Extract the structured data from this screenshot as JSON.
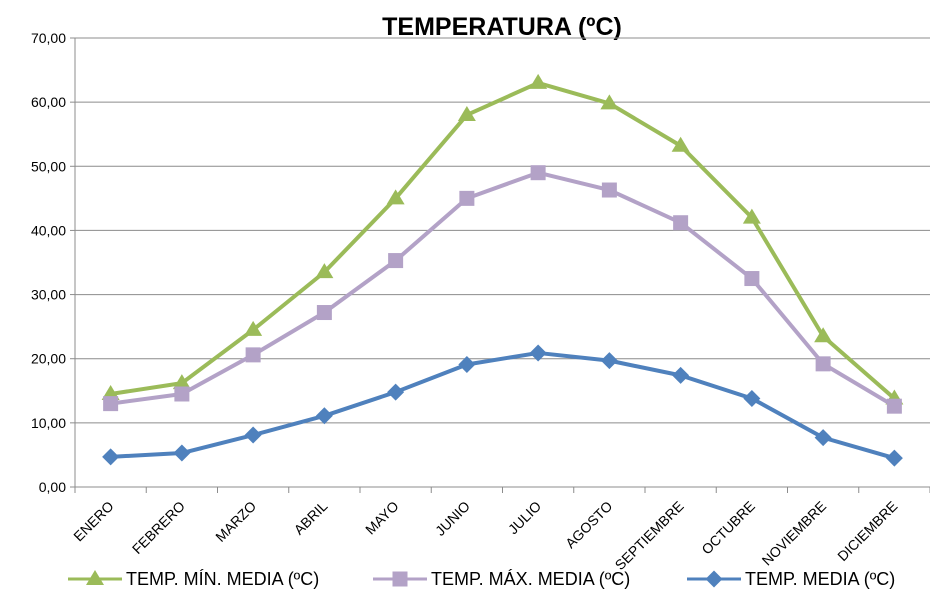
{
  "chart_data": {
    "type": "line",
    "title": "TEMPERATURA (ºC)",
    "xlabel": "",
    "ylabel": "",
    "categories": [
      "ENERO",
      "FEBRERO",
      "MARZO",
      "ABRIL",
      "MAYO",
      "JUNIO",
      "JULIO",
      "AGOSTO",
      "SEPTIEMBRE",
      "OCTUBRE",
      "NOVIEMBRE",
      "DICIEMBRE"
    ],
    "ylim": [
      0,
      70
    ],
    "yticks": [
      "0,00",
      "10,00",
      "20,00",
      "30,00",
      "40,00",
      "50,00",
      "60,00",
      "70,00"
    ],
    "grid": true,
    "legend_position": "bottom",
    "series": [
      {
        "name": "TEMP. MÍN. MEDIA (ºC)",
        "color": "#9BBB59",
        "marker": "triangle",
        "values": [
          14.5,
          16.2,
          24.5,
          33.5,
          45.0,
          58.0,
          63.0,
          59.8,
          53.2,
          42.0,
          23.5,
          13.8
        ]
      },
      {
        "name": "TEMP. MÁX. MEDIA (ºC)",
        "color": "#B3A2C7",
        "marker": "square",
        "values": [
          13.0,
          14.5,
          20.6,
          27.2,
          35.3,
          45.0,
          49.0,
          46.3,
          41.2,
          32.5,
          19.2,
          12.6
        ]
      },
      {
        "name": "TEMP. MEDIA (ºC)",
        "color": "#4F81BD",
        "marker": "diamond",
        "values": [
          4.7,
          5.3,
          8.1,
          11.1,
          14.8,
          19.1,
          20.9,
          19.7,
          17.4,
          13.8,
          7.7,
          4.5
        ]
      }
    ]
  }
}
